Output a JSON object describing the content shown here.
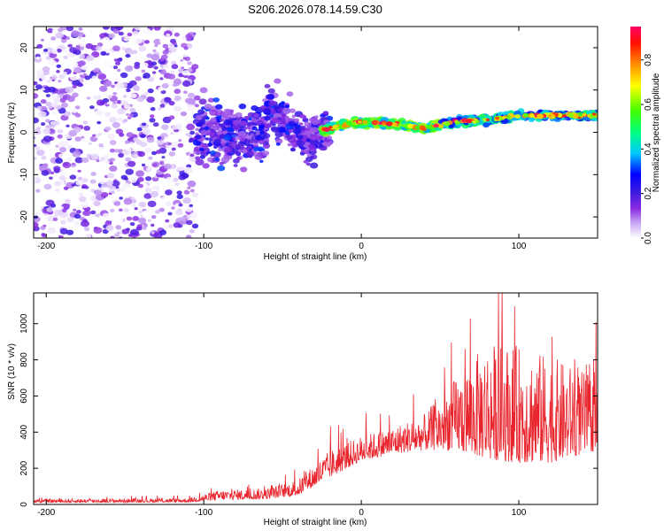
{
  "page": {
    "title": "S206.2026.078.14.59.C30"
  },
  "colors": {
    "snr_line": "#e8242c",
    "colormap": [
      "#ffffff",
      "#8a2be2",
      "#0000ff",
      "#00ffff",
      "#00ff00",
      "#ffff00",
      "#ff8000",
      "#ff0000",
      "#ff0066"
    ]
  },
  "chart_data": [
    {
      "type": "heatmap",
      "title": "S206.2026.078.14.59.C30",
      "xlabel": "Height of straight line (km)",
      "ylabel": "Frequency (Hz)",
      "xlim": [
        -208,
        150
      ],
      "ylim": [
        -25,
        25
      ],
      "x_ticks": [
        -200,
        -100,
        0,
        100
      ],
      "y_ticks": [
        -20,
        -10,
        0,
        10,
        20
      ],
      "colorbar": {
        "label": "Normalized spectral amplitude",
        "range": [
          0,
          0.95
        ],
        "ticks": [
          0.0,
          0.2,
          0.4,
          0.6,
          0.8
        ]
      },
      "features": {
        "noise_region_x": [
          -208,
          -105
        ],
        "scatter_region_x": [
          -105,
          -20
        ],
        "signal_line": {
          "x": [
            -25,
            0,
            20,
            40,
            60,
            80,
            100,
            120,
            150
          ],
          "freq": [
            0.5,
            2.5,
            2.0,
            1.0,
            2.5,
            3.0,
            4.0,
            4.0,
            4.0
          ],
          "peak_amplitude": 0.95
        }
      }
    },
    {
      "type": "line",
      "xlabel": "Height of straight line (km)",
      "ylabel": "SNR (10 * v/v)",
      "xlim": [
        -208,
        150
      ],
      "ylim": [
        0,
        1170
      ],
      "x_ticks": [
        -200,
        -100,
        0,
        100
      ],
      "y_ticks": [
        0,
        200,
        400,
        600,
        800,
        1000
      ],
      "envelope": {
        "x": [
          -208,
          -110,
          -90,
          -60,
          -40,
          -20,
          0,
          20,
          40,
          60,
          80,
          100,
          120,
          150
        ],
        "snr": [
          30,
          35,
          80,
          90,
          140,
          300,
          380,
          430,
          500,
          700,
          900,
          880,
          820,
          700
        ],
        "baseline": [
          10,
          12,
          25,
          30,
          50,
          150,
          240,
          280,
          300,
          300,
          250,
          230,
          230,
          300
        ]
      }
    }
  ]
}
